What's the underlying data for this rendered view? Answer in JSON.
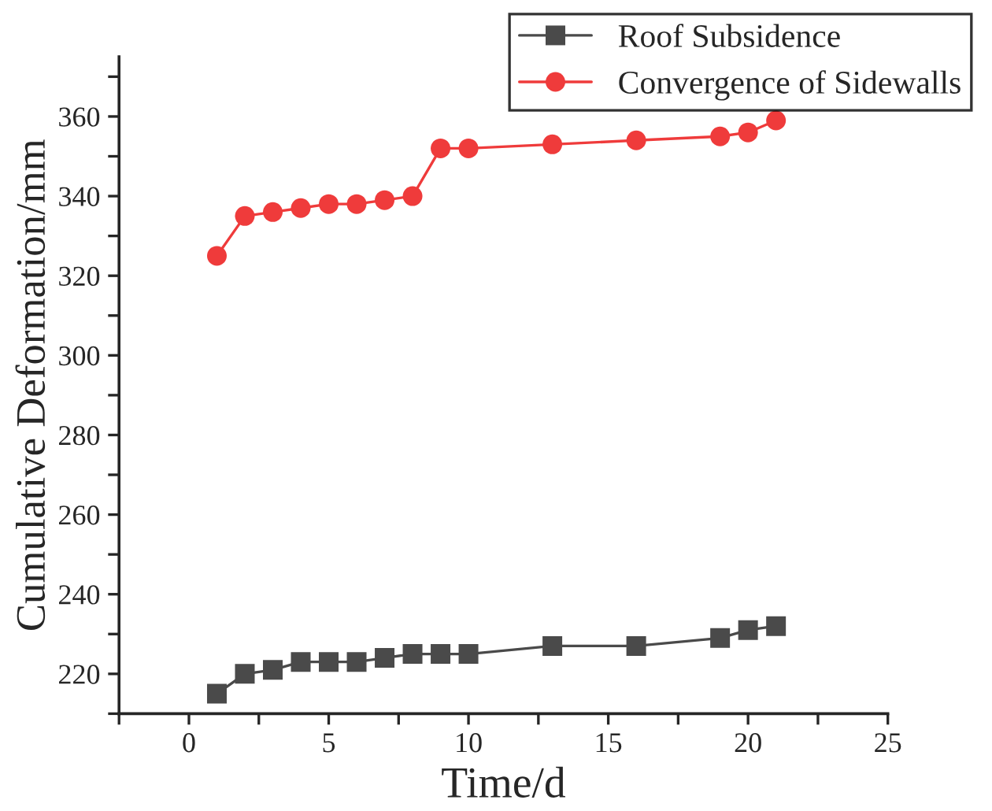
{
  "chart_data": {
    "type": "line",
    "xlabel": "Time/d",
    "ylabel": "Cumulative Deformation/mm",
    "x": [
      1,
      2,
      3,
      4,
      5,
      6,
      7,
      8,
      9,
      10,
      13,
      16,
      19,
      20,
      21
    ],
    "series": [
      {
        "name": "Roof Subsidence",
        "color": "#4a4a4a",
        "marker": "square",
        "values": [
          215,
          220,
          221,
          223,
          223,
          223,
          224,
          225,
          225,
          225,
          227,
          227,
          229,
          231,
          232
        ]
      },
      {
        "name": "Convergence of Sidewalls",
        "color": "#ef3b3b",
        "marker": "circle",
        "values": [
          325,
          335,
          336,
          337,
          338,
          338,
          339,
          340,
          352,
          352,
          353,
          354,
          355,
          356,
          359
        ]
      }
    ],
    "xlim": [
      -2.5,
      25
    ],
    "ylim": [
      210,
      375
    ],
    "xticks": [
      {
        "value": -2.5,
        "label": null
      },
      0,
      {
        "value": 2.5,
        "label": null
      },
      5,
      {
        "value": 7.5,
        "label": null
      },
      10,
      {
        "value": 12.5,
        "label": null
      },
      15,
      {
        "value": 17.5,
        "label": null
      },
      20,
      {
        "value": 22.5,
        "label": null
      },
      25
    ],
    "yticks": [
      {
        "value": 210,
        "label": null
      },
      220,
      {
        "value": 230,
        "label": null
      },
      240,
      {
        "value": 250,
        "label": null
      },
      260,
      {
        "value": 270,
        "label": null
      },
      280,
      {
        "value": 290,
        "label": null
      },
      300,
      {
        "value": 310,
        "label": null
      },
      320,
      {
        "value": 330,
        "label": null
      },
      340,
      {
        "value": 350,
        "label": null
      },
      360,
      {
        "value": 370,
        "label": null
      }
    ],
    "grid": false,
    "legend": "top right",
    "line_style": "solid"
  }
}
